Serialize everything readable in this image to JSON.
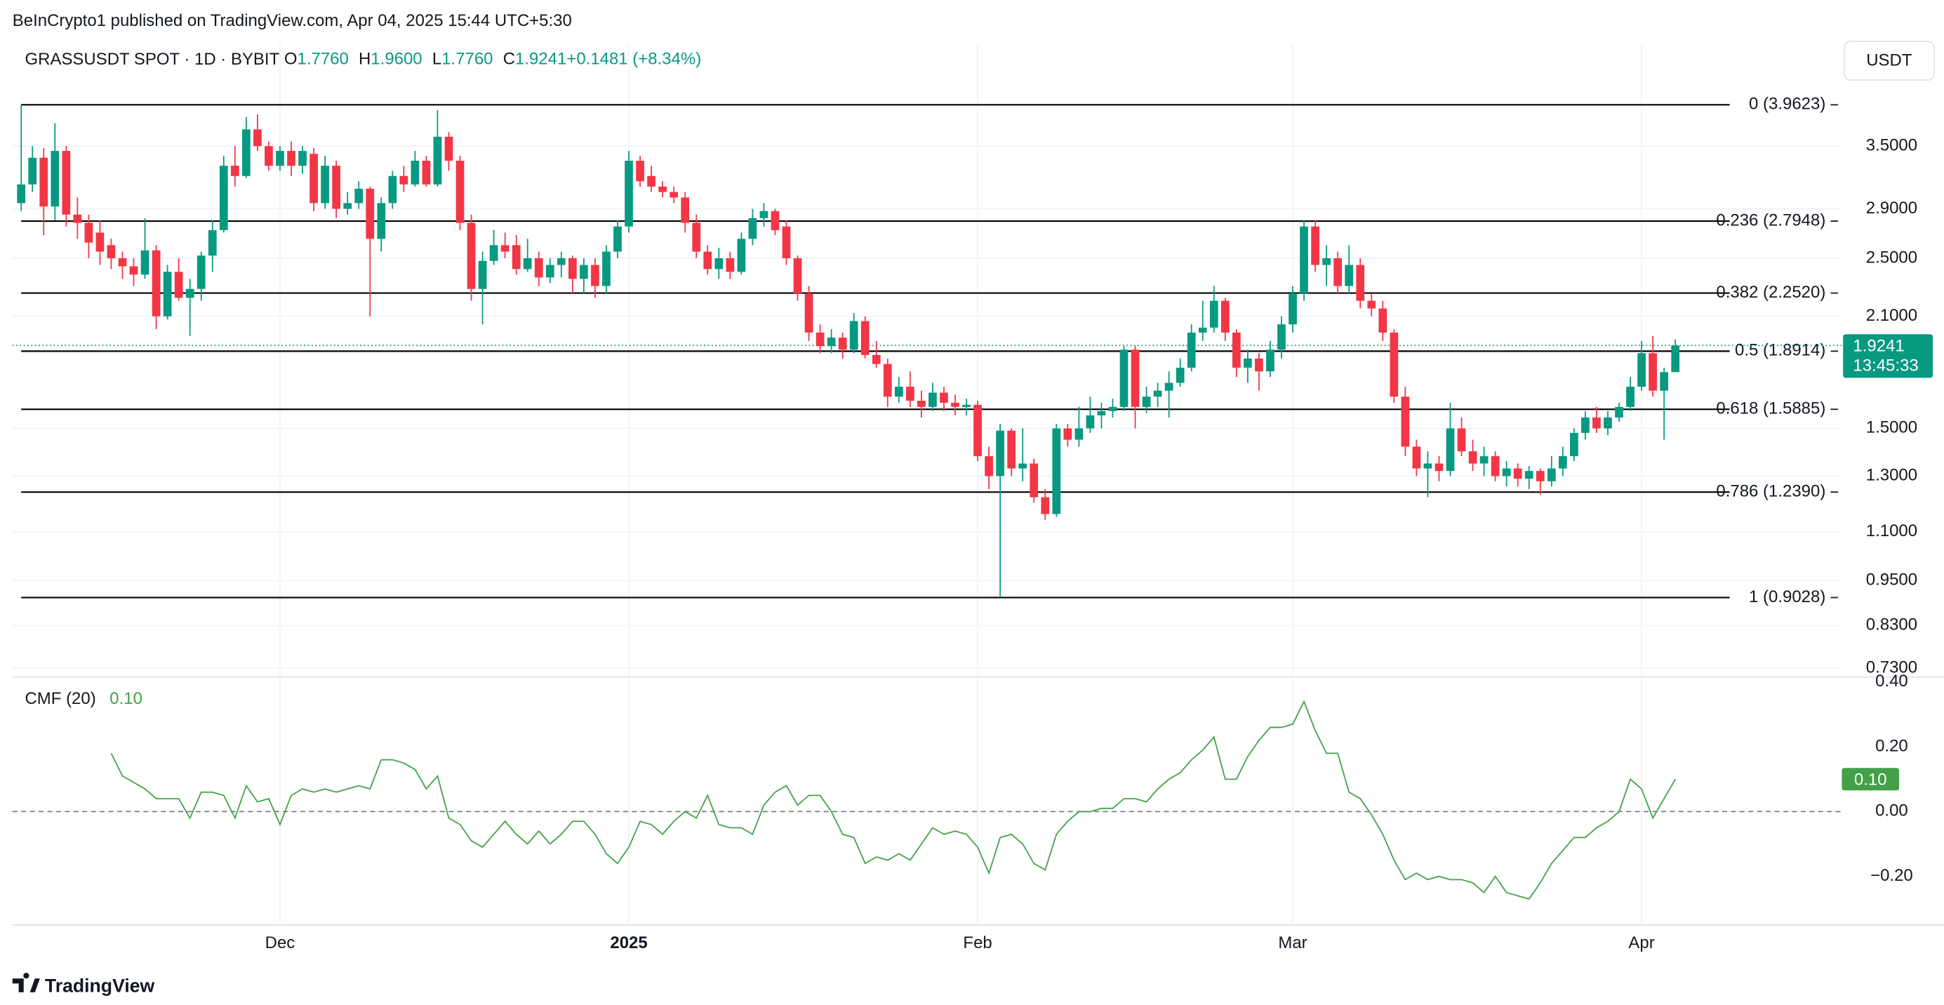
{
  "header": {
    "publisher": "BeInCrypto1 published on TradingView.com, Apr 04, 2025 15:44 UTC+5:30"
  },
  "footer": {
    "brand": "TradingView"
  },
  "chart_data": [
    {
      "type": "candlestick",
      "title": "GRASSUSDT SPOT · 1D · BYBIT",
      "currency": "USDT",
      "legend": [
        {
          "key": "O",
          "value": "1.7760"
        },
        {
          "key": "H",
          "value": "1.9600"
        },
        {
          "key": "L",
          "value": "1.7760"
        },
        {
          "key": "C",
          "value": "1.9241"
        },
        {
          "key": "",
          "value": "+0.1481 (+8.34%)"
        }
      ],
      "up_color": "#089981",
      "down_color": "#f23645",
      "log_scale": true,
      "grid": true,
      "ylim": [
        0.714,
        4.757
      ],
      "yticks": [
        {
          "value": 3.5,
          "label": "3.5000"
        },
        {
          "value": 2.9,
          "label": "2.9000"
        },
        {
          "value": 2.5,
          "label": "2.5000"
        },
        {
          "value": 2.1,
          "label": "2.1000"
        },
        {
          "value": 1.5,
          "label": "1.5000"
        },
        {
          "value": 1.3,
          "label": "1.3000"
        },
        {
          "value": 1.1,
          "label": "1.1000"
        },
        {
          "value": 0.95,
          "label": "0.9500"
        },
        {
          "value": 0.83,
          "label": "0.8300"
        },
        {
          "value": 0.73,
          "label": "0.7300"
        }
      ],
      "fib_levels": [
        {
          "value": 3.9623,
          "label": "0 (3.9623)"
        },
        {
          "value": 2.7948,
          "label": "0.236 (2.7948)"
        },
        {
          "value": 2.252,
          "label": "0.382 (2.2520)"
        },
        {
          "value": 1.8914,
          "label": "0.5 (1.8914)"
        },
        {
          "value": 1.5885,
          "label": "0.618 (1.5885)"
        },
        {
          "value": 1.239,
          "label": "0.786 (1.2390)"
        },
        {
          "value": 0.9028,
          "label": "1 (0.9028)"
        }
      ],
      "price_label": {
        "value": 1.9241,
        "label": "1.9241",
        "countdown": "13:45:33"
      },
      "categories": [
        null,
        null,
        null,
        null,
        null,
        null,
        null,
        null,
        null,
        null,
        null,
        null,
        null,
        null,
        null,
        null,
        null,
        null,
        null,
        null,
        null,
        null,
        null,
        "Dec",
        null,
        null,
        null,
        null,
        null,
        null,
        null,
        null,
        null,
        null,
        null,
        null,
        null,
        null,
        null,
        null,
        null,
        null,
        null,
        null,
        null,
        null,
        null,
        null,
        null,
        null,
        null,
        null,
        null,
        null,
        "2025",
        null,
        null,
        null,
        null,
        null,
        null,
        null,
        null,
        null,
        null,
        null,
        null,
        null,
        null,
        null,
        null,
        null,
        null,
        null,
        null,
        null,
        null,
        null,
        null,
        null,
        null,
        null,
        null,
        null,
        null,
        "Feb",
        null,
        null,
        null,
        null,
        null,
        null,
        null,
        null,
        null,
        null,
        null,
        null,
        null,
        null,
        null,
        null,
        null,
        null,
        null,
        null,
        null,
        null,
        null,
        null,
        null,
        null,
        null,
        "Mar",
        null,
        null,
        null,
        null,
        null,
        null,
        null,
        null,
        null,
        null,
        null,
        null,
        null,
        null,
        null,
        null,
        null,
        null,
        null,
        null,
        null,
        null,
        null,
        null,
        null,
        null,
        null,
        null,
        null,
        null,
        "Apr",
        null,
        null,
        null
      ],
      "ohlc": [
        [
          2.95,
          3.96,
          2.88,
          3.12
        ],
        [
          3.12,
          3.5,
          3.05,
          3.38
        ],
        [
          3.38,
          3.48,
          2.68,
          2.92
        ],
        [
          2.92,
          3.75,
          2.8,
          3.45
        ],
        [
          3.45,
          3.5,
          2.75,
          2.85
        ],
        [
          2.85,
          3.0,
          2.65,
          2.78
        ],
        [
          2.78,
          2.85,
          2.5,
          2.62
        ],
        [
          2.7,
          2.8,
          2.45,
          2.55
        ],
        [
          2.6,
          2.65,
          2.42,
          2.5
        ],
        [
          2.5,
          2.55,
          2.35,
          2.44
        ],
        [
          2.44,
          2.5,
          2.3,
          2.38
        ],
        [
          2.38,
          2.82,
          2.35,
          2.56
        ],
        [
          2.56,
          2.6,
          2.02,
          2.1
        ],
        [
          2.1,
          2.45,
          2.08,
          2.4
        ],
        [
          2.4,
          2.5,
          2.2,
          2.22
        ],
        [
          2.22,
          2.35,
          1.98,
          2.28
        ],
        [
          2.28,
          2.55,
          2.2,
          2.52
        ],
        [
          2.52,
          2.8,
          2.4,
          2.72
        ],
        [
          2.72,
          3.4,
          2.7,
          3.3
        ],
        [
          3.3,
          3.5,
          3.1,
          3.2
        ],
        [
          3.2,
          3.82,
          3.18,
          3.68
        ],
        [
          3.68,
          3.85,
          3.45,
          3.5
        ],
        [
          3.5,
          3.55,
          3.25,
          3.3
        ],
        [
          3.3,
          3.5,
          3.25,
          3.45
        ],
        [
          3.45,
          3.55,
          3.2,
          3.3
        ],
        [
          3.3,
          3.5,
          3.22,
          3.45
        ],
        [
          3.42,
          3.48,
          2.88,
          2.95
        ],
        [
          2.95,
          3.4,
          2.9,
          3.3
        ],
        [
          3.3,
          3.35,
          2.82,
          2.9
        ],
        [
          2.9,
          3.05,
          2.85,
          2.95
        ],
        [
          2.95,
          3.15,
          2.9,
          3.08
        ],
        [
          3.08,
          3.1,
          2.1,
          2.65
        ],
        [
          2.65,
          3.0,
          2.55,
          2.95
        ],
        [
          2.95,
          3.25,
          2.9,
          3.2
        ],
        [
          3.2,
          3.3,
          3.05,
          3.12
        ],
        [
          3.12,
          3.45,
          3.1,
          3.35
        ],
        [
          3.35,
          3.4,
          3.1,
          3.12
        ],
        [
          3.12,
          3.9,
          3.1,
          3.6
        ],
        [
          3.6,
          3.65,
          3.25,
          3.35
        ],
        [
          3.35,
          3.4,
          2.72,
          2.78
        ],
        [
          2.78,
          2.85,
          2.2,
          2.28
        ],
        [
          2.28,
          2.55,
          2.05,
          2.48
        ],
        [
          2.48,
          2.72,
          2.45,
          2.6
        ],
        [
          2.6,
          2.7,
          2.5,
          2.55
        ],
        [
          2.6,
          2.68,
          2.38,
          2.42
        ],
        [
          2.42,
          2.65,
          2.4,
          2.5
        ],
        [
          2.5,
          2.55,
          2.3,
          2.36
        ],
        [
          2.36,
          2.5,
          2.32,
          2.45
        ],
        [
          2.45,
          2.55,
          2.36,
          2.5
        ],
        [
          2.5,
          2.52,
          2.25,
          2.35
        ],
        [
          2.35,
          2.5,
          2.25,
          2.45
        ],
        [
          2.45,
          2.5,
          2.22,
          2.3
        ],
        [
          2.3,
          2.6,
          2.25,
          2.55
        ],
        [
          2.55,
          2.8,
          2.5,
          2.75
        ],
        [
          2.75,
          3.45,
          2.7,
          3.35
        ],
        [
          3.35,
          3.4,
          3.1,
          3.15
        ],
        [
          3.2,
          3.3,
          3.05,
          3.1
        ],
        [
          3.1,
          3.15,
          3.0,
          3.05
        ],
        [
          3.05,
          3.1,
          2.95,
          3.0
        ],
        [
          3.0,
          3.05,
          2.7,
          2.78
        ],
        [
          2.78,
          2.85,
          2.5,
          2.55
        ],
        [
          2.55,
          2.6,
          2.38,
          2.42
        ],
        [
          2.42,
          2.58,
          2.35,
          2.5
        ],
        [
          2.5,
          2.55,
          2.35,
          2.4
        ],
        [
          2.4,
          2.7,
          2.38,
          2.65
        ],
        [
          2.65,
          2.9,
          2.6,
          2.82
        ],
        [
          2.82,
          2.95,
          2.75,
          2.88
        ],
        [
          2.88,
          2.9,
          2.68,
          2.72
        ],
        [
          2.75,
          2.8,
          2.45,
          2.5
        ],
        [
          2.5,
          2.52,
          2.2,
          2.25
        ],
        [
          2.25,
          2.3,
          1.95,
          2.0
        ],
        [
          2.0,
          2.05,
          1.88,
          1.92
        ],
        [
          1.92,
          2.02,
          1.88,
          1.97
        ],
        [
          1.97,
          2.0,
          1.85,
          1.9
        ],
        [
          1.9,
          2.12,
          1.88,
          2.07
        ],
        [
          2.07,
          2.1,
          1.85,
          1.87
        ],
        [
          1.87,
          1.95,
          1.8,
          1.82
        ],
        [
          1.82,
          1.85,
          1.6,
          1.65
        ],
        [
          1.65,
          1.75,
          1.62,
          1.7
        ],
        [
          1.7,
          1.78,
          1.6,
          1.63
        ],
        [
          1.63,
          1.68,
          1.55,
          1.6
        ],
        [
          1.6,
          1.72,
          1.58,
          1.67
        ],
        [
          1.67,
          1.7,
          1.58,
          1.62
        ],
        [
          1.62,
          1.66,
          1.56,
          1.6
        ],
        [
          1.6,
          1.64,
          1.56,
          1.61
        ],
        [
          1.61,
          1.63,
          1.36,
          1.38
        ],
        [
          1.38,
          1.42,
          1.25,
          1.3
        ],
        [
          1.3,
          1.52,
          0.9028,
          1.49
        ],
        [
          1.49,
          1.5,
          1.3,
          1.33
        ],
        [
          1.33,
          1.5,
          1.28,
          1.35
        ],
        [
          1.35,
          1.37,
          1.2,
          1.22
        ],
        [
          1.22,
          1.25,
          1.14,
          1.16
        ],
        [
          1.16,
          1.52,
          1.15,
          1.5
        ],
        [
          1.5,
          1.52,
          1.42,
          1.45
        ],
        [
          1.45,
          1.6,
          1.42,
          1.5
        ],
        [
          1.5,
          1.65,
          1.48,
          1.56
        ],
        [
          1.56,
          1.62,
          1.5,
          1.58
        ],
        [
          1.58,
          1.64,
          1.55,
          1.6
        ],
        [
          1.6,
          1.92,
          1.58,
          1.9
        ],
        [
          1.9,
          1.92,
          1.5,
          1.6
        ],
        [
          1.6,
          1.7,
          1.57,
          1.65
        ],
        [
          1.65,
          1.72,
          1.6,
          1.68
        ],
        [
          1.68,
          1.78,
          1.55,
          1.72
        ],
        [
          1.72,
          1.85,
          1.7,
          1.8
        ],
        [
          1.8,
          2.05,
          1.78,
          2.0
        ],
        [
          2.0,
          2.2,
          1.95,
          2.03
        ],
        [
          2.03,
          2.3,
          2.0,
          2.2
        ],
        [
          2.2,
          2.22,
          1.95,
          2.0
        ],
        [
          2.0,
          2.02,
          1.75,
          1.8
        ],
        [
          1.8,
          1.9,
          1.72,
          1.85
        ],
        [
          1.85,
          1.88,
          1.68,
          1.78
        ],
        [
          1.78,
          1.95,
          1.75,
          1.9
        ],
        [
          1.9,
          2.1,
          1.85,
          2.05
        ],
        [
          2.05,
          2.3,
          2.0,
          2.25
        ],
        [
          2.25,
          2.8,
          2.2,
          2.75
        ],
        [
          2.75,
          2.8,
          2.4,
          2.45
        ],
        [
          2.45,
          2.6,
          2.3,
          2.5
        ],
        [
          2.5,
          2.55,
          2.25,
          2.3
        ],
        [
          2.3,
          2.6,
          2.25,
          2.45
        ],
        [
          2.45,
          2.5,
          2.15,
          2.2
        ],
        [
          2.2,
          2.25,
          2.1,
          2.15
        ],
        [
          2.15,
          2.2,
          1.95,
          2.0
        ],
        [
          2.0,
          2.02,
          1.62,
          1.65
        ],
        [
          1.65,
          1.7,
          1.38,
          1.42
        ],
        [
          1.42,
          1.45,
          1.3,
          1.33
        ],
        [
          1.33,
          1.4,
          1.22,
          1.35
        ],
        [
          1.35,
          1.38,
          1.28,
          1.32
        ],
        [
          1.32,
          1.62,
          1.3,
          1.5
        ],
        [
          1.5,
          1.55,
          1.38,
          1.4
        ],
        [
          1.4,
          1.45,
          1.32,
          1.35
        ],
        [
          1.35,
          1.42,
          1.3,
          1.38
        ],
        [
          1.38,
          1.4,
          1.28,
          1.3
        ],
        [
          1.3,
          1.36,
          1.26,
          1.33
        ],
        [
          1.33,
          1.35,
          1.26,
          1.29
        ],
        [
          1.29,
          1.34,
          1.25,
          1.32
        ],
        [
          1.32,
          1.33,
          1.23,
          1.28
        ],
        [
          1.28,
          1.38,
          1.26,
          1.33
        ],
        [
          1.33,
          1.42,
          1.3,
          1.38
        ],
        [
          1.38,
          1.5,
          1.36,
          1.48
        ],
        [
          1.48,
          1.58,
          1.45,
          1.55
        ],
        [
          1.55,
          1.6,
          1.48,
          1.5
        ],
        [
          1.5,
          1.58,
          1.47,
          1.55
        ],
        [
          1.55,
          1.62,
          1.53,
          1.6
        ],
        [
          1.6,
          1.75,
          1.58,
          1.7
        ],
        [
          1.7,
          1.95,
          1.68,
          1.88
        ],
        [
          1.88,
          1.98,
          1.65,
          1.68
        ],
        [
          1.68,
          1.8,
          1.45,
          1.776
        ],
        [
          1.776,
          1.96,
          1.776,
          1.9241
        ]
      ]
    },
    {
      "type": "line",
      "title": "CMF (20)",
      "legend_value": "0.10",
      "color": "#43a047",
      "ylim": [
        -0.35,
        0.408
      ],
      "yticks": [
        {
          "value": 0.4,
          "label": "0.40"
        },
        {
          "value": 0.2,
          "label": "0.20"
        },
        {
          "value": 0,
          "label": "0.00"
        },
        {
          "value": -0.2,
          "label": "−0.20"
        }
      ],
      "zero_line": 0,
      "badge": {
        "value": 0.1,
        "label": "0.10"
      },
      "values": [
        null,
        null,
        null,
        null,
        null,
        null,
        null,
        null,
        0.18,
        0.11,
        0.09,
        0.07,
        0.04,
        0.04,
        0.04,
        -0.02,
        0.06,
        0.06,
        0.05,
        -0.02,
        0.08,
        0.03,
        0.04,
        -0.04,
        0.05,
        0.07,
        0.06,
        0.07,
        0.06,
        0.07,
        0.08,
        0.07,
        0.16,
        0.16,
        0.15,
        0.13,
        0.07,
        0.11,
        -0.02,
        -0.04,
        -0.09,
        -0.11,
        -0.07,
        -0.03,
        -0.07,
        -0.1,
        -0.06,
        -0.1,
        -0.07,
        -0.03,
        -0.03,
        -0.07,
        -0.13,
        -0.16,
        -0.11,
        -0.03,
        -0.04,
        -0.07,
        -0.03,
        0.0,
        -0.02,
        0.05,
        -0.04,
        -0.05,
        -0.05,
        -0.07,
        0.02,
        0.06,
        0.08,
        0.02,
        0.05,
        0.05,
        0.0,
        -0.07,
        -0.08,
        -0.16,
        -0.14,
        -0.15,
        -0.13,
        -0.15,
        -0.1,
        -0.05,
        -0.07,
        -0.06,
        -0.07,
        -0.11,
        -0.19,
        -0.08,
        -0.07,
        -0.1,
        -0.16,
        -0.18,
        -0.07,
        -0.03,
        0.0,
        0.0,
        0.01,
        0.01,
        0.04,
        0.04,
        0.03,
        0.07,
        0.1,
        0.12,
        0.16,
        0.19,
        0.23,
        0.1,
        0.1,
        0.17,
        0.22,
        0.26,
        0.26,
        0.27,
        0.34,
        0.25,
        0.18,
        0.18,
        0.06,
        0.04,
        -0.01,
        -0.07,
        -0.15,
        -0.21,
        -0.19,
        -0.21,
        -0.2,
        -0.21,
        -0.21,
        -0.22,
        -0.25,
        -0.2,
        -0.25,
        -0.26,
        -0.27,
        -0.22,
        -0.16,
        -0.12,
        -0.08,
        -0.08,
        -0.05,
        -0.03,
        0.0,
        0.1,
        0.07,
        -0.02,
        0.04,
        0.1
      ]
    }
  ]
}
